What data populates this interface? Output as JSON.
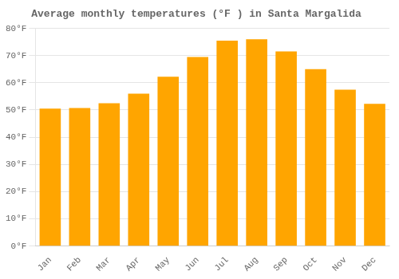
{
  "chart_data": {
    "type": "bar",
    "title": "Average monthly temperatures (°F ) in Santa Margalida",
    "categories": [
      "Jan",
      "Feb",
      "Mar",
      "Apr",
      "May",
      "Jun",
      "Jul",
      "Aug",
      "Sep",
      "Oct",
      "Nov",
      "Dec"
    ],
    "values": [
      50.5,
      50.7,
      52.5,
      56.0,
      62.2,
      69.5,
      75.5,
      76.0,
      71.5,
      65.0,
      57.5,
      52.3
    ],
    "color": "#FFA500",
    "ylim": [
      0,
      80
    ],
    "yticks": [
      {
        "value": 0,
        "label": "0°F"
      },
      {
        "value": 10,
        "label": "10°F"
      },
      {
        "value": 20,
        "label": "20°F"
      },
      {
        "value": 30,
        "label": "30°F"
      },
      {
        "value": 40,
        "label": "40°F"
      },
      {
        "value": 50,
        "label": "50°F"
      },
      {
        "value": 60,
        "label": "60°F"
      },
      {
        "value": 70,
        "label": "70°F"
      },
      {
        "value": 80,
        "label": "80°F"
      }
    ],
    "grid": true
  }
}
